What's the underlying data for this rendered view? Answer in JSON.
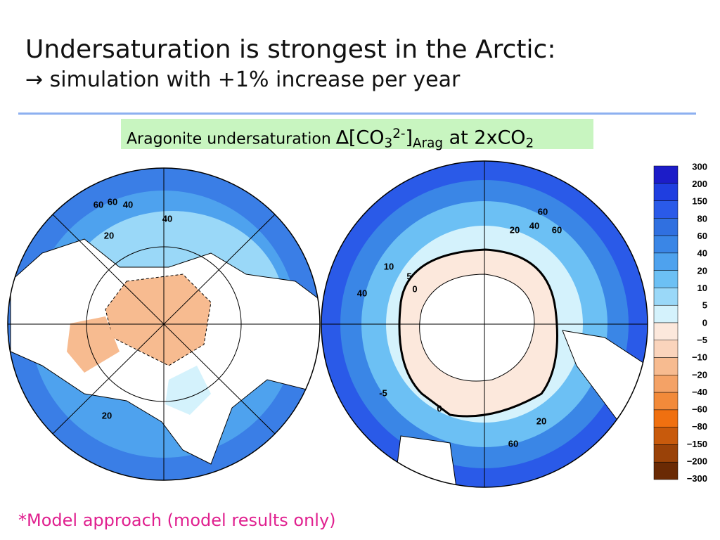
{
  "header": {
    "title": "Undersaturation is strongest in the Arctic:",
    "subtitle": "→ simulation with +1% increase per year"
  },
  "caption": {
    "text": "Aragonite undersaturation ",
    "species": "∆[CO",
    "sub1": "3",
    "sup": "2-",
    "close": "]",
    "sub2": "Arag",
    "tail": " at 2xCO",
    "sub3": "2"
  },
  "colorbar": {
    "labels": [
      "300",
      "200",
      "150",
      "80",
      "60",
      "40",
      "20",
      "10",
      "5",
      "0",
      "−5",
      "−10",
      "−20",
      "−40",
      "−60",
      "−80",
      "−150",
      "−200",
      "−300"
    ],
    "colors": [
      "#1c1cc8",
      "#1f3ee0",
      "#2a5ae8",
      "#3070e0",
      "#3a86e6",
      "#4ea2ee",
      "#6cc0f4",
      "#9ad8f8",
      "#d4f2fc",
      "#fce8dc",
      "#fad4bc",
      "#f7bb90",
      "#f4a266",
      "#f28a3a",
      "#f07010",
      "#c85a0c",
      "#9a4208",
      "#6a2a04"
    ]
  },
  "maps": {
    "north_labels": [
      "60",
      "60",
      "40",
      "40",
      "20",
      "20"
    ],
    "south_labels": [
      "60",
      "60",
      "20",
      "40",
      "40",
      "10",
      "5",
      "0",
      "-5",
      "60",
      "20",
      "0"
    ]
  },
  "footnote": "*Model approach (model results only)"
}
